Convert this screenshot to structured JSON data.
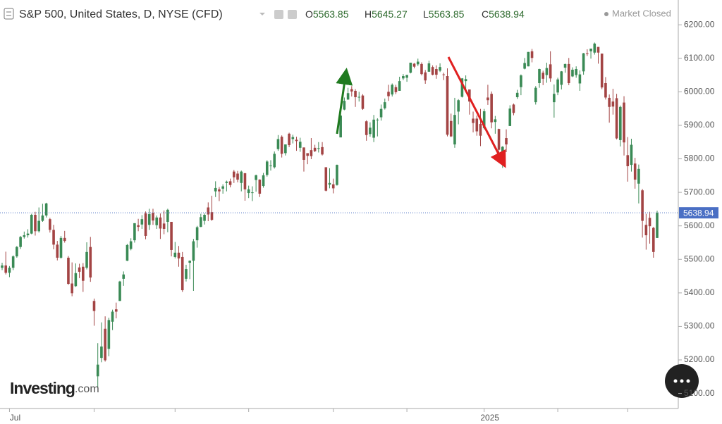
{
  "chart_data": {
    "type": "candlestick",
    "title": "S&P 500, United States, D, NYSE (CFD)",
    "status": "Market Closed",
    "ohlc_labels": [
      "O",
      "H",
      "L",
      "C"
    ],
    "brand": {
      "name": "Investing",
      "suffix": ".com"
    },
    "up_color": "#3a8a55",
    "down_color": "#a34444",
    "last_price_color": "#4a6fc4",
    "ylim": [
      5055,
      6274
    ],
    "yticks": [
      {
        "value": 5100,
        "label": "5100.00"
      },
      {
        "value": 5200,
        "label": "5200.00"
      },
      {
        "value": 5300,
        "label": "5300.00"
      },
      {
        "value": 5400,
        "label": "5400.00"
      },
      {
        "value": 5500,
        "label": "5500.00"
      },
      {
        "value": 5600,
        "label": "5600.00"
      },
      {
        "value": 5700,
        "label": "5700.00"
      },
      {
        "value": 5800,
        "label": "5800.00"
      },
      {
        "value": 5900,
        "label": "5900.00"
      },
      {
        "value": 6000,
        "label": "6000.00"
      },
      {
        "value": 6100,
        "label": "6100.00"
      },
      {
        "value": 6200,
        "label": "6200.00"
      }
    ],
    "xticks": [
      {
        "value": 2,
        "label": "Jul"
      },
      {
        "value": 25,
        "label": null
      },
      {
        "value": 47,
        "label": null
      },
      {
        "value": 67,
        "label": null
      },
      {
        "value": 90,
        "label": null
      },
      {
        "value": 110,
        "label": null
      },
      {
        "value": 131,
        "label": "2025"
      },
      {
        "value": 151,
        "label": null
      },
      {
        "value": 170,
        "label": null
      }
    ],
    "candles": [
      [
        5475,
        5490,
        5468,
        5482
      ],
      [
        5482,
        5523,
        5455,
        5460
      ],
      [
        5460,
        5480,
        5447,
        5475
      ],
      [
        5475,
        5512,
        5468,
        5509
      ],
      [
        5509,
        5540,
        5505,
        5537
      ],
      [
        5537,
        5570,
        5531,
        5567
      ],
      [
        5567,
        5583,
        5562,
        5572
      ],
      [
        5572,
        5590,
        5565,
        5577
      ],
      [
        5577,
        5636,
        5575,
        5633
      ],
      [
        5633,
        5642,
        5571,
        5584
      ],
      [
        5584,
        5655,
        5580,
        5615
      ],
      [
        5615,
        5666,
        5612,
        5631
      ],
      [
        5631,
        5669,
        5625,
        5667
      ],
      [
        5620,
        5624,
        5580,
        5588
      ],
      [
        5588,
        5603,
        5530,
        5544
      ],
      [
        5544,
        5555,
        5497,
        5505
      ],
      [
        5505,
        5570,
        5502,
        5564
      ],
      [
        5564,
        5585,
        5550,
        5555
      ],
      [
        5505,
        5510,
        5424,
        5427
      ],
      [
        5428,
        5491,
        5390,
        5399
      ],
      [
        5420,
        5488,
        5418,
        5459
      ],
      [
        5476,
        5487,
        5444,
        5463
      ],
      [
        5478,
        5489,
        5403,
        5436
      ],
      [
        5475,
        5551,
        5470,
        5522
      ],
      [
        5537,
        5567,
        5433,
        5446
      ],
      [
        5376,
        5383,
        5302,
        5346
      ],
      [
        5151,
        5250,
        5119,
        5186
      ],
      [
        5206,
        5312,
        5193,
        5240
      ],
      [
        5293,
        5330,
        5195,
        5199
      ],
      [
        5233,
        5326,
        5211,
        5319
      ],
      [
        5314,
        5350,
        5289,
        5344
      ],
      [
        5351,
        5371,
        5324,
        5344
      ],
      [
        5376,
        5436,
        5376,
        5434
      ],
      [
        5442,
        5464,
        5421,
        5455
      ],
      [
        5496,
        5546,
        5495,
        5543
      ],
      [
        5531,
        5563,
        5527,
        5554
      ],
      [
        5557,
        5608,
        5550,
        5608
      ],
      [
        5602,
        5621,
        5584,
        5597
      ],
      [
        5604,
        5632,
        5591,
        5620
      ],
      [
        5637,
        5643,
        5560,
        5570
      ],
      [
        5603,
        5651,
        5588,
        5635
      ],
      [
        5639,
        5651,
        5603,
        5616
      ],
      [
        5602,
        5631,
        5591,
        5625
      ],
      [
        5625,
        5637,
        5561,
        5592
      ],
      [
        5607,
        5646,
        5575,
        5591
      ],
      [
        5612,
        5651,
        5581,
        5648
      ],
      [
        5612,
        5612,
        5509,
        5528
      ],
      [
        5507,
        5552,
        5503,
        5520
      ],
      [
        5520,
        5540,
        5478,
        5503
      ],
      [
        5507,
        5522,
        5403,
        5408
      ],
      [
        5442,
        5484,
        5434,
        5471
      ],
      [
        5490,
        5497,
        5441,
        5496
      ],
      [
        5496,
        5561,
        5406,
        5554
      ],
      [
        5557,
        5600,
        5535,
        5596
      ],
      [
        5597,
        5636,
        5596,
        5626
      ],
      [
        5615,
        5637,
        5604,
        5633
      ],
      [
        5655,
        5670,
        5614,
        5634
      ],
      [
        5641,
        5690,
        5615,
        5618
      ],
      [
        5703,
        5733,
        5686,
        5713
      ],
      [
        5709,
        5716,
        5674,
        5703
      ],
      [
        5711,
        5724,
        5696,
        5718
      ],
      [
        5728,
        5735,
        5703,
        5732
      ],
      [
        5733,
        5741,
        5715,
        5722
      ],
      [
        5762,
        5767,
        5728,
        5745
      ],
      [
        5756,
        5764,
        5730,
        5738
      ],
      [
        5728,
        5765,
        5703,
        5762
      ],
      [
        5757,
        5758,
        5675,
        5709
      ],
      [
        5698,
        5720,
        5683,
        5709
      ],
      [
        5698,
        5718,
        5674,
        5700
      ],
      [
        5737,
        5753,
        5702,
        5751
      ],
      [
        5738,
        5739,
        5686,
        5696
      ],
      [
        5719,
        5758,
        5714,
        5751
      ],
      [
        5752,
        5796,
        5747,
        5792
      ],
      [
        5778,
        5796,
        5765,
        5780
      ],
      [
        5775,
        5822,
        5771,
        5815
      ],
      [
        5829,
        5871,
        5824,
        5859
      ],
      [
        5866,
        5870,
        5804,
        5815
      ],
      [
        5817,
        5843,
        5810,
        5843
      ],
      [
        5875,
        5878,
        5835,
        5841
      ],
      [
        5859,
        5872,
        5846,
        5865
      ],
      [
        5857,
        5866,
        5824,
        5853
      ],
      [
        5833,
        5863,
        5821,
        5851
      ],
      [
        5834,
        5834,
        5762,
        5797
      ],
      [
        5817,
        5817,
        5784,
        5809
      ],
      [
        5826,
        5862,
        5799,
        5808
      ],
      [
        5833,
        5842,
        5820,
        5823
      ],
      [
        5832,
        5850,
        5819,
        5832
      ],
      [
        5835,
        5850,
        5810,
        5813
      ],
      [
        5775,
        5775,
        5703,
        5705
      ],
      [
        5723,
        5772,
        5712,
        5728
      ],
      [
        5724,
        5741,
        5697,
        5712
      ],
      [
        5722,
        5783,
        5720,
        5782
      ],
      [
        5864,
        5936,
        5864,
        5929
      ],
      [
        5947,
        5983,
        5945,
        5973
      ],
      [
        5977,
        6012,
        5976,
        5996
      ],
      [
        6008,
        6017,
        5986,
        6001
      ],
      [
        6003,
        6008,
        5955,
        5984
      ],
      [
        5985,
        6000,
        5971,
        5985
      ],
      [
        5989,
        5993,
        5946,
        5949
      ],
      [
        5912,
        5915,
        5854,
        5871
      ],
      [
        5874,
        5909,
        5866,
        5893
      ],
      [
        5863,
        5931,
        5850,
        5917
      ],
      [
        5917,
        5921,
        5867,
        5917
      ],
      [
        5924,
        5962,
        5914,
        5949
      ],
      [
        5951,
        5980,
        5947,
        5969
      ],
      [
        6000,
        6021,
        5973,
        5987
      ],
      [
        5992,
        6025,
        5986,
        6021
      ],
      [
        6014,
        6021,
        5993,
        5999
      ],
      [
        6003,
        6045,
        6003,
        6032
      ],
      [
        6040,
        6053,
        6035,
        6047
      ],
      [
        6042,
        6051,
        6030,
        6050
      ],
      [
        6057,
        6087,
        6055,
        6087
      ],
      [
        6084,
        6086,
        6070,
        6075
      ],
      [
        6082,
        6099,
        6077,
        6090
      ],
      [
        6083,
        6088,
        6049,
        6053
      ],
      [
        6058,
        6065,
        6024,
        6034
      ],
      [
        6060,
        6093,
        6060,
        6085
      ],
      [
        6074,
        6079,
        6049,
        6051
      ],
      [
        6068,
        6079,
        6039,
        6051
      ],
      [
        6063,
        6085,
        6059,
        6074
      ],
      [
        6052,
        6057,
        6035,
        6051
      ],
      [
        6047,
        6070,
        5867,
        5872
      ],
      [
        5913,
        5935,
        5865,
        5867
      ],
      [
        5843,
        5982,
        5833,
        5931
      ],
      [
        5941,
        5978,
        5903,
        5975
      ],
      [
        5985,
        6041,
        5983,
        6040
      ],
      [
        6032,
        6049,
        6007,
        6038
      ],
      [
        6007,
        6007,
        5932,
        5971
      ],
      [
        5920,
        5941,
        5879,
        5907
      ],
      [
        5920,
        5929,
        5869,
        5882
      ],
      [
        5904,
        5949,
        5838,
        5869
      ],
      [
        5892,
        5949,
        5888,
        5942
      ],
      [
        5983,
        6021,
        5961,
        5975
      ],
      [
        5994,
        6001,
        5891,
        5909
      ],
      [
        5910,
        5928,
        5875,
        5918
      ],
      [
        5889,
        5890,
        5809,
        5827
      ],
      [
        5794,
        5838,
        5773,
        5836
      ],
      [
        5862,
        5888,
        5820,
        5843
      ],
      [
        5898,
        5960,
        5898,
        5950
      ],
      [
        5962,
        5965,
        5930,
        5937
      ],
      [
        5984,
        6006,
        5979,
        5997
      ],
      [
        6014,
        6052,
        5990,
        6049
      ],
      [
        6069,
        6101,
        6067,
        6086
      ],
      [
        6076,
        6119,
        6076,
        6119
      ],
      [
        6121,
        6128,
        6088,
        6101
      ],
      [
        5969,
        6017,
        5962,
        6012
      ],
      [
        6026,
        6069,
        6012,
        6068
      ],
      [
        6057,
        6063,
        6020,
        6039
      ],
      [
        6050,
        6087,
        6027,
        6071
      ],
      [
        6082,
        6121,
        6030,
        6040
      ],
      [
        5969,
        6022,
        5923,
        5994
      ],
      [
        5998,
        6042,
        5990,
        6037
      ],
      [
        6021,
        6062,
        6007,
        6061
      ],
      [
        6072,
        6084,
        6057,
        6083
      ],
      [
        6083,
        6101,
        6020,
        6026
      ],
      [
        6046,
        6073,
        6044,
        6066
      ],
      [
        6050,
        6076,
        6042,
        6068
      ],
      [
        6025,
        6064,
        6003,
        6052
      ],
      [
        6061,
        6116,
        6051,
        6115
      ],
      [
        6115,
        6127,
        6107,
        6114
      ],
      [
        6121,
        6129,
        6099,
        6129
      ],
      [
        6117,
        6147,
        6111,
        6144
      ],
      [
        6134,
        6134,
        6084,
        6117
      ],
      [
        6114,
        6114,
        6008,
        6013
      ],
      [
        6026,
        6044,
        5977,
        5983
      ],
      [
        5982,
        5992,
        5908,
        5955
      ],
      [
        5971,
        6009,
        5932,
        5956
      ],
      [
        5981,
        5994,
        5858,
        5861
      ],
      [
        5856,
        5959,
        5837,
        5955
      ],
      [
        5968,
        5987,
        5810,
        5849
      ],
      [
        5811,
        5865,
        5732,
        5778
      ],
      [
        5782,
        5860,
        5762,
        5842
      ],
      [
        5786,
        5803,
        5711,
        5738
      ],
      [
        5726,
        5783,
        5667,
        5770
      ],
      [
        5706,
        5710,
        5565,
        5615
      ],
      [
        5603,
        5636,
        5529,
        5572
      ],
      [
        5624,
        5642,
        5547,
        5599
      ],
      [
        5594,
        5597,
        5505,
        5522
      ],
      [
        5563.85,
        5645.27,
        5563.85,
        5638.94
      ]
    ]
  }
}
